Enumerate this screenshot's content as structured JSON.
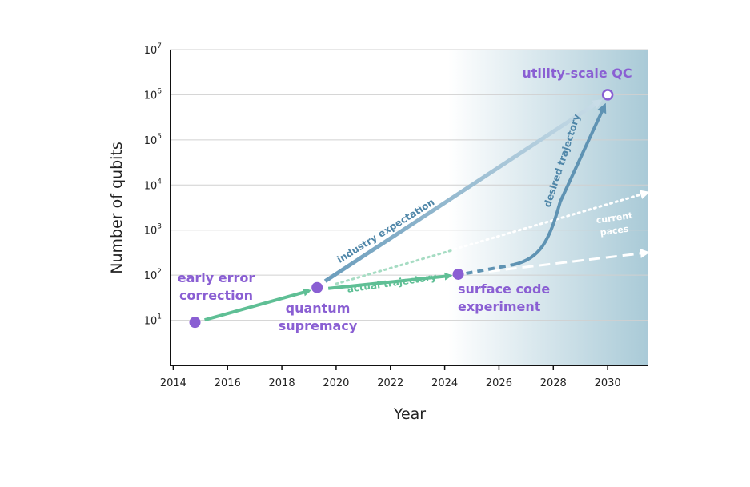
{
  "chart_data": {
    "type": "scatter",
    "title": "",
    "xlabel": "Year",
    "ylabel": "Number of qubits",
    "xlim": [
      2013.9,
      2031.5
    ],
    "ylim_log10": [
      0,
      7
    ],
    "x_ticks": [
      "2014",
      "2016",
      "2018",
      "2020",
      "2022",
      "2024",
      "2026",
      "2028",
      "2030"
    ],
    "x_tick_values": [
      2014,
      2016,
      2018,
      2020,
      2022,
      2024,
      2026,
      2028,
      2030
    ],
    "y_ticks": [
      {
        "base": "10",
        "exp": "1",
        "log": 1
      },
      {
        "base": "10",
        "exp": "2",
        "log": 2
      },
      {
        "base": "10",
        "exp": "3",
        "log": 3
      },
      {
        "base": "10",
        "exp": "4",
        "log": 4
      },
      {
        "base": "10",
        "exp": "5",
        "log": 5
      },
      {
        "base": "10",
        "exp": "6",
        "log": 6
      },
      {
        "base": "10",
        "exp": "7",
        "log": 7
      }
    ],
    "milestones": [
      {
        "label_lines": [
          "early error",
          "correction"
        ],
        "x": 2014.8,
        "qubits": 9
      },
      {
        "label_lines": [
          "quantum",
          "supremacy"
        ],
        "x": 2019.3,
        "qubits": 53
      },
      {
        "label_lines": [
          "surface code",
          "experiment"
        ],
        "x": 2024.5,
        "qubits": 105
      },
      {
        "label_lines": [
          "utility-scale QC"
        ],
        "x": 2030.0,
        "qubits": 1000000,
        "hollow": true
      }
    ],
    "annotations": {
      "actual_trajectory": "actual trajectory",
      "industry_expectation": "industry expectation",
      "desired_trajectory": "desired trajectory",
      "current_paces": [
        "current",
        "paces"
      ]
    },
    "colors": {
      "purple": "#8a5fd3",
      "green": "#5fbf95",
      "blue": "#5f93b3",
      "light_blue": "#a9c7d8",
      "grid": "#d0d0d0",
      "shade": "#a9cad7"
    }
  }
}
